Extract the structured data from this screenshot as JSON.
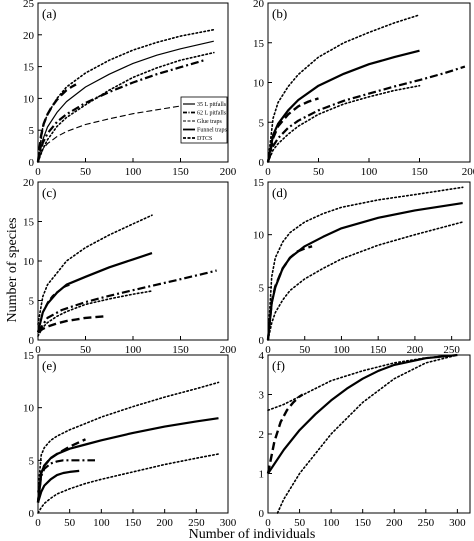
{
  "figure": {
    "xlabel": "Number of individuals",
    "ylabel": "Number of species"
  },
  "legend": {
    "entries": [
      {
        "label": "35 L pitfalls",
        "style": "thin-solid"
      },
      {
        "label": "62 L pitfalls",
        "style": "dash-dot"
      },
      {
        "label": "Glue traps",
        "style": "thin-dashed"
      },
      {
        "label": "Funnel traps",
        "style": "thick-solid"
      },
      {
        "label": "DTCS",
        "style": "thick-dashed"
      }
    ]
  },
  "chart_data": [
    {
      "panel": "(a)",
      "type": "line",
      "xlim": [
        0,
        200
      ],
      "ylim": [
        0,
        25
      ],
      "xticks": [
        0,
        50,
        100,
        150,
        200
      ],
      "yticks": [
        0,
        5,
        10,
        15,
        20,
        25
      ],
      "series": [
        {
          "style": "thin-solid",
          "x": [
            0,
            5,
            10,
            20,
            30,
            50,
            75,
            100,
            125,
            150,
            185
          ],
          "y": [
            0,
            3.5,
            5.5,
            7.8,
            9.5,
            11.8,
            13.8,
            15.5,
            16.8,
            17.8,
            19
          ]
        },
        {
          "style": "dotted",
          "x": [
            0,
            5,
            10,
            20,
            30,
            50,
            75,
            100,
            125,
            150,
            185
          ],
          "y": [
            0,
            5.5,
            7.5,
            10,
            11.8,
            14,
            16,
            17.6,
            18.8,
            19.8,
            20.8
          ]
        },
        {
          "style": "dotted",
          "x": [
            0,
            5,
            10,
            20,
            30,
            50,
            75,
            100,
            125,
            150,
            185
          ],
          "y": [
            0,
            2,
            3.5,
            5.6,
            7,
            9,
            11.3,
            13.3,
            14.8,
            16,
            17.2
          ]
        },
        {
          "style": "dash-dot",
          "x": [
            0,
            5,
            10,
            20,
            30,
            50,
            75,
            100,
            125,
            150,
            175
          ],
          "y": [
            0,
            3,
            4.5,
            6.3,
            7.5,
            9.3,
            11,
            12.5,
            13.8,
            14.9,
            16
          ]
        },
        {
          "style": "thin-dashed",
          "x": [
            0,
            5,
            10,
            20,
            30,
            50,
            75,
            100,
            125,
            150,
            160
          ],
          "y": [
            0,
            2,
            2.9,
            4,
            4.8,
            5.9,
            6.8,
            7.6,
            8.2,
            8.8,
            9
          ]
        },
        {
          "style": "thick-dashed",
          "x": [
            0,
            3,
            6,
            10,
            15,
            20,
            25,
            30,
            35,
            40
          ],
          "y": [
            0,
            4,
            6,
            7.5,
            8.8,
            9.8,
            10.6,
            11.3,
            11.8,
            12.2
          ]
        }
      ]
    },
    {
      "panel": "(b)",
      "type": "line",
      "xlim": [
        0,
        200
      ],
      "ylim": [
        0,
        20
      ],
      "xticks": [
        0,
        50,
        100,
        150,
        200
      ],
      "yticks": [
        0,
        5,
        10,
        15,
        20
      ],
      "series": [
        {
          "style": "thick-solid",
          "x": [
            0,
            5,
            10,
            20,
            30,
            50,
            75,
            100,
            125,
            150
          ],
          "y": [
            0,
            3.4,
            4.8,
            6.5,
            7.8,
            9.6,
            11.1,
            12.3,
            13.2,
            14
          ]
        },
        {
          "style": "dotted",
          "x": [
            0,
            5,
            10,
            20,
            30,
            50,
            75,
            100,
            125,
            150
          ],
          "y": [
            0,
            5.5,
            7.5,
            9.5,
            11,
            13.2,
            15,
            16.3,
            17.5,
            18.5
          ]
        },
        {
          "style": "dotted",
          "x": [
            0,
            5,
            10,
            20,
            30,
            50,
            75,
            100,
            125,
            150
          ],
          "y": [
            0,
            1.5,
            2.3,
            3.5,
            4.5,
            6,
            7.3,
            8.2,
            9,
            9.6
          ]
        },
        {
          "style": "dash-dot",
          "x": [
            0,
            5,
            10,
            20,
            30,
            50,
            75,
            100,
            125,
            150,
            175,
            195
          ],
          "y": [
            0,
            2,
            3,
            4.3,
            5.2,
            6.5,
            7.7,
            8.6,
            9.5,
            10.3,
            11.2,
            12
          ]
        },
        {
          "style": "thick-dashed",
          "x": [
            0,
            5,
            10,
            20,
            30,
            40,
            50
          ],
          "y": [
            0,
            3,
            4.5,
            6,
            7,
            7.6,
            8
          ]
        }
      ]
    },
    {
      "panel": "(c)",
      "type": "line",
      "xlim": [
        0,
        200
      ],
      "ylim": [
        0,
        20
      ],
      "xticks": [
        0,
        50,
        100,
        150,
        200
      ],
      "yticks": [
        0,
        5,
        10,
        15,
        20
      ],
      "series": [
        {
          "style": "thick-solid",
          "x": [
            0,
            5,
            10,
            20,
            30,
            50,
            75,
            100,
            120
          ],
          "y": [
            1,
            3.5,
            4.6,
            6,
            7,
            8,
            9.2,
            10.2,
            11
          ]
        },
        {
          "style": "dotted",
          "x": [
            0,
            5,
            10,
            20,
            30,
            50,
            75,
            100,
            120
          ],
          "y": [
            2,
            5.5,
            7,
            8.5,
            10,
            11.7,
            13.3,
            14.7,
            15.8
          ]
        },
        {
          "style": "dotted",
          "x": [
            0,
            5,
            10,
            20,
            30,
            50,
            75,
            100,
            120
          ],
          "y": [
            0.5,
            1.6,
            2.2,
            3,
            3.6,
            4.5,
            5.2,
            5.8,
            6.2
          ]
        },
        {
          "style": "dash-dot",
          "x": [
            0,
            10,
            25,
            50,
            75,
            100,
            125,
            150,
            175,
            188
          ],
          "y": [
            1,
            2.8,
            3.8,
            4.8,
            5.6,
            6.3,
            7,
            7.7,
            8.4,
            8.8
          ]
        },
        {
          "style": "thick-dashed",
          "x": [
            0,
            5,
            10,
            20,
            30,
            40,
            50,
            60,
            70
          ],
          "y": [
            1,
            1.4,
            1.7,
            2.1,
            2.4,
            2.6,
            2.8,
            2.9,
            3
          ]
        },
        {
          "style": "thin-dashed",
          "x": [
            0,
            5,
            10,
            15,
            20,
            25,
            30,
            35
          ],
          "y": [
            1,
            3.6,
            4.8,
            5.6,
            6.1,
            6.5,
            6.8,
            7
          ]
        }
      ]
    },
    {
      "panel": "(d)",
      "type": "line",
      "xlim": [
        0,
        275
      ],
      "ylim": [
        0,
        15
      ],
      "xticks": [
        0,
        50,
        100,
        150,
        200,
        250
      ],
      "yticks": [
        0,
        5,
        10,
        15
      ],
      "series": [
        {
          "style": "thick-solid",
          "x": [
            0,
            5,
            10,
            20,
            30,
            50,
            75,
            100,
            150,
            200,
            265
          ],
          "y": [
            0,
            3.5,
            5,
            6.8,
            7.8,
            8.9,
            9.8,
            10.6,
            11.6,
            12.3,
            13
          ]
        },
        {
          "style": "dotted",
          "x": [
            0,
            5,
            10,
            20,
            30,
            50,
            75,
            100,
            150,
            200,
            265
          ],
          "y": [
            0,
            6,
            7.8,
            9.3,
            10.2,
            11.2,
            12,
            12.6,
            13.3,
            13.8,
            14.5
          ]
        },
        {
          "style": "dotted",
          "x": [
            0,
            5,
            10,
            20,
            30,
            50,
            75,
            100,
            150,
            200,
            265
          ],
          "y": [
            0,
            1.6,
            2.6,
            3.8,
            4.7,
            5.8,
            6.8,
            7.7,
            9,
            10,
            11.2
          ]
        },
        {
          "style": "thick-dashed",
          "x": [
            0,
            5,
            10,
            20,
            30,
            40,
            50,
            60
          ],
          "y": [
            0,
            3.6,
            5.1,
            6.8,
            7.8,
            8.4,
            8.7,
            8.9
          ]
        }
      ]
    },
    {
      "panel": "(e)",
      "type": "line",
      "xlim": [
        0,
        300
      ],
      "ylim": [
        0,
        15
      ],
      "xticks": [
        0,
        50,
        100,
        150,
        200,
        250,
        300
      ],
      "yticks": [
        0,
        5,
        10,
        15
      ],
      "series": [
        {
          "style": "thick-solid",
          "x": [
            0,
            5,
            10,
            20,
            30,
            50,
            75,
            100,
            150,
            200,
            250,
            285
          ],
          "y": [
            1,
            3.8,
            4.5,
            5.2,
            5.6,
            6.1,
            6.5,
            6.9,
            7.6,
            8.2,
            8.7,
            9
          ]
        },
        {
          "style": "dotted",
          "x": [
            0,
            5,
            10,
            20,
            30,
            50,
            75,
            100,
            150,
            200,
            250,
            285
          ],
          "y": [
            2,
            5.5,
            6.2,
            6.9,
            7.3,
            7.9,
            8.5,
            9.1,
            10.1,
            11,
            11.8,
            12.4
          ]
        },
        {
          "style": "dotted",
          "x": [
            0,
            5,
            10,
            20,
            30,
            50,
            75,
            100,
            150,
            200,
            250,
            285
          ],
          "y": [
            0,
            0.5,
            0.9,
            1.4,
            1.8,
            2.3,
            2.8,
            3.2,
            3.9,
            4.6,
            5.2,
            5.6
          ]
        },
        {
          "style": "dash-dot",
          "x": [
            0,
            5,
            10,
            20,
            30,
            40,
            60,
            90
          ],
          "y": [
            1,
            3.5,
            4.2,
            4.7,
            4.9,
            5,
            5,
            5
          ]
        },
        {
          "style": "thick-dashed",
          "x": [
            0,
            5,
            10,
            20,
            30,
            50,
            75
          ],
          "y": [
            1,
            3.8,
            4.5,
            5.2,
            5.6,
            6.3,
            7
          ]
        },
        {
          "style": "thick-solid",
          "x": [
            0,
            5,
            10,
            20,
            30,
            40,
            50,
            65
          ],
          "y": [
            1,
            2,
            2.6,
            3.2,
            3.6,
            3.8,
            3.9,
            4
          ]
        }
      ]
    },
    {
      "panel": "(f)",
      "type": "line",
      "xlim": [
        0,
        320
      ],
      "ylim": [
        0,
        4
      ],
      "xticks": [
        0,
        50,
        100,
        150,
        200,
        250,
        300
      ],
      "yticks": [
        0,
        1,
        2,
        3,
        4
      ],
      "series": [
        {
          "style": "thick-solid",
          "x": [
            0,
            25,
            50,
            75,
            100,
            125,
            150,
            175,
            200,
            250,
            300
          ],
          "y": [
            1,
            1.6,
            2.1,
            2.5,
            2.85,
            3.15,
            3.4,
            3.6,
            3.75,
            3.92,
            4
          ]
        },
        {
          "style": "dotted",
          "x": [
            0,
            25,
            50,
            75,
            100,
            150,
            200,
            250,
            300
          ],
          "y": [
            2.6,
            2.75,
            2.95,
            3.15,
            3.35,
            3.6,
            3.8,
            3.93,
            4
          ]
        },
        {
          "style": "dotted",
          "x": [
            15,
            25,
            50,
            75,
            100,
            150,
            200,
            250,
            300
          ],
          "y": [
            0,
            0.35,
            1,
            1.5,
            2,
            2.8,
            3.4,
            3.8,
            4
          ]
        },
        {
          "style": "thick-dashed",
          "x": [
            0,
            10,
            20,
            30,
            40,
            50,
            55
          ],
          "y": [
            1,
            1.8,
            2.3,
            2.6,
            2.8,
            2.95,
            3
          ]
        }
      ]
    }
  ]
}
